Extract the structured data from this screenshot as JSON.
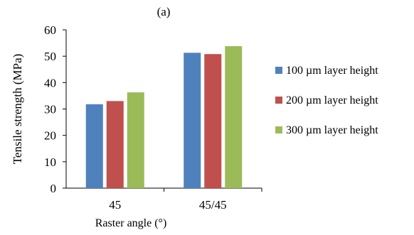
{
  "chart_data": {
    "type": "bar",
    "title": "(a)",
    "xlabel": "Raster angle (°)",
    "ylabel": "Tensile strength (MPa)",
    "categories": [
      "45",
      "45/45"
    ],
    "series": [
      {
        "name": "100 µm layer height",
        "values": [
          31.8,
          51.3
        ],
        "color": "#4f81bd"
      },
      {
        "name": "200 µm layer height",
        "values": [
          33.0,
          50.8
        ],
        "color": "#c0504d"
      },
      {
        "name": "300 µm layer height",
        "values": [
          36.3,
          53.8
        ],
        "color": "#9bbb59"
      }
    ],
    "ylim": [
      0,
      60
    ],
    "yticks": [
      0,
      10,
      20,
      30,
      40,
      50,
      60
    ],
    "grid": false,
    "legend_position": "right"
  }
}
